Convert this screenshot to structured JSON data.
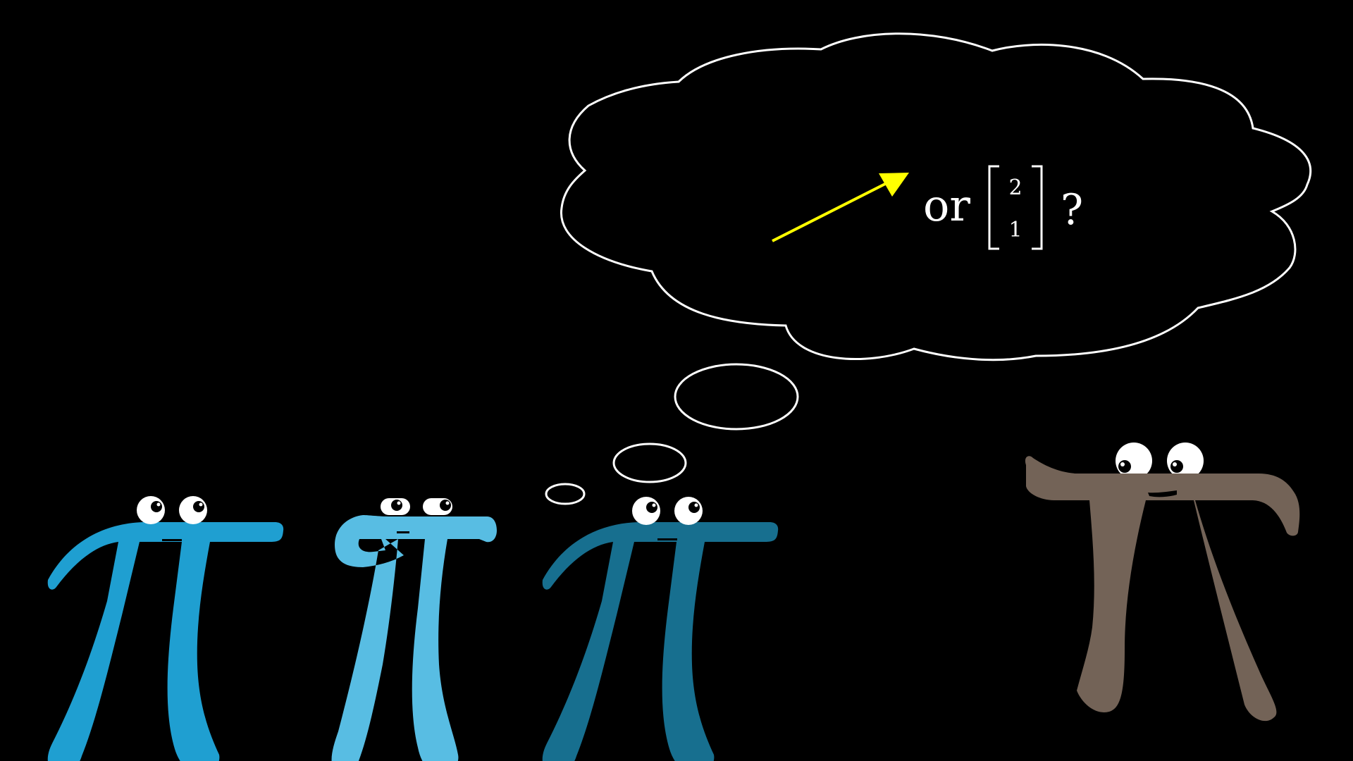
{
  "thought": {
    "or_text": "or",
    "matrix": [
      "2",
      "1"
    ],
    "question_mark": "?"
  },
  "colors": {
    "background": "#000000",
    "pi_1": "#1f9fd1",
    "pi_2": "#58bde3",
    "pi_3": "#176f8f",
    "pi_teacher": "#736357",
    "arrow": "#ffff00",
    "bubble_stroke": "#ffffff"
  }
}
